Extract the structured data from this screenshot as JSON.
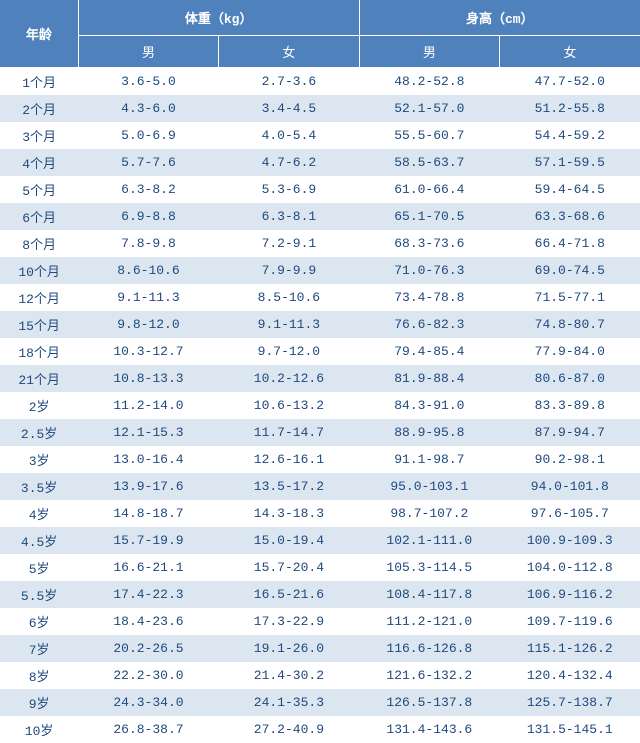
{
  "header": {
    "age": "年龄",
    "weight": "体重（kg）",
    "height": "身高（cm）",
    "male": "男",
    "female": "女"
  },
  "rows": [
    {
      "age": "1个月",
      "wm": "3.6-5.0",
      "wf": "2.7-3.6",
      "hm": "48.2-52.8",
      "hf": "47.7-52.0"
    },
    {
      "age": "2个月",
      "wm": "4.3-6.0",
      "wf": "3.4-4.5",
      "hm": "52.1-57.0",
      "hf": "51.2-55.8"
    },
    {
      "age": "3个月",
      "wm": "5.0-6.9",
      "wf": "4.0-5.4",
      "hm": "55.5-60.7",
      "hf": "54.4-59.2"
    },
    {
      "age": "4个月",
      "wm": "5.7-7.6",
      "wf": "4.7-6.2",
      "hm": "58.5-63.7",
      "hf": "57.1-59.5"
    },
    {
      "age": "5个月",
      "wm": "6.3-8.2",
      "wf": "5.3-6.9",
      "hm": "61.0-66.4",
      "hf": "59.4-64.5"
    },
    {
      "age": "6个月",
      "wm": "6.9-8.8",
      "wf": "6.3-8.1",
      "hm": "65.1-70.5",
      "hf": "63.3-68.6"
    },
    {
      "age": "8个月",
      "wm": "7.8-9.8",
      "wf": "7.2-9.1",
      "hm": "68.3-73.6",
      "hf": "66.4-71.8"
    },
    {
      "age": "10个月",
      "wm": "8.6-10.6",
      "wf": "7.9-9.9",
      "hm": "71.0-76.3",
      "hf": "69.0-74.5"
    },
    {
      "age": "12个月",
      "wm": "9.1-11.3",
      "wf": "8.5-10.6",
      "hm": "73.4-78.8",
      "hf": "71.5-77.1"
    },
    {
      "age": "15个月",
      "wm": "9.8-12.0",
      "wf": "9.1-11.3",
      "hm": "76.6-82.3",
      "hf": "74.8-80.7"
    },
    {
      "age": "18个月",
      "wm": "10.3-12.7",
      "wf": "9.7-12.0",
      "hm": "79.4-85.4",
      "hf": "77.9-84.0"
    },
    {
      "age": "21个月",
      "wm": "10.8-13.3",
      "wf": "10.2-12.6",
      "hm": "81.9-88.4",
      "hf": "80.6-87.0"
    },
    {
      "age": "2岁",
      "wm": "11.2-14.0",
      "wf": "10.6-13.2",
      "hm": "84.3-91.0",
      "hf": "83.3-89.8"
    },
    {
      "age": "2.5岁",
      "wm": "12.1-15.3",
      "wf": "11.7-14.7",
      "hm": "88.9-95.8",
      "hf": "87.9-94.7"
    },
    {
      "age": "3岁",
      "wm": "13.0-16.4",
      "wf": "12.6-16.1",
      "hm": "91.1-98.7",
      "hf": "90.2-98.1"
    },
    {
      "age": "3.5岁",
      "wm": "13.9-17.6",
      "wf": "13.5-17.2",
      "hm": "95.0-103.1",
      "hf": "94.0-101.8"
    },
    {
      "age": "4岁",
      "wm": "14.8-18.7",
      "wf": "14.3-18.3",
      "hm": "98.7-107.2",
      "hf": "97.6-105.7"
    },
    {
      "age": "4.5岁",
      "wm": "15.7-19.9",
      "wf": "15.0-19.4",
      "hm": "102.1-111.0",
      "hf": "100.9-109.3"
    },
    {
      "age": "5岁",
      "wm": "16.6-21.1",
      "wf": "15.7-20.4",
      "hm": "105.3-114.5",
      "hf": "104.0-112.8"
    },
    {
      "age": "5.5岁",
      "wm": "17.4-22.3",
      "wf": "16.5-21.6",
      "hm": "108.4-117.8",
      "hf": "106.9-116.2"
    },
    {
      "age": "6岁",
      "wm": "18.4-23.6",
      "wf": "17.3-22.9",
      "hm": "111.2-121.0",
      "hf": "109.7-119.6"
    },
    {
      "age": "7岁",
      "wm": "20.2-26.5",
      "wf": "19.1-26.0",
      "hm": "116.6-126.8",
      "hf": "115.1-126.2"
    },
    {
      "age": "8岁",
      "wm": "22.2-30.0",
      "wf": "21.4-30.2",
      "hm": "121.6-132.2",
      "hf": "120.4-132.4"
    },
    {
      "age": "9岁",
      "wm": "24.3-34.0",
      "wf": "24.1-35.3",
      "hm": "126.5-137.8",
      "hf": "125.7-138.7"
    },
    {
      "age": "10岁",
      "wm": "26.8-38.7",
      "wf": "27.2-40.9",
      "hm": "131.4-143.6",
      "hf": "131.5-145.1"
    }
  ],
  "colors": {
    "header_bg": "#4f81bd",
    "header_fg": "#ffffff",
    "text": "#1f497d",
    "stripe_even": "#dce6f1",
    "stripe_odd": "#ffffff"
  }
}
